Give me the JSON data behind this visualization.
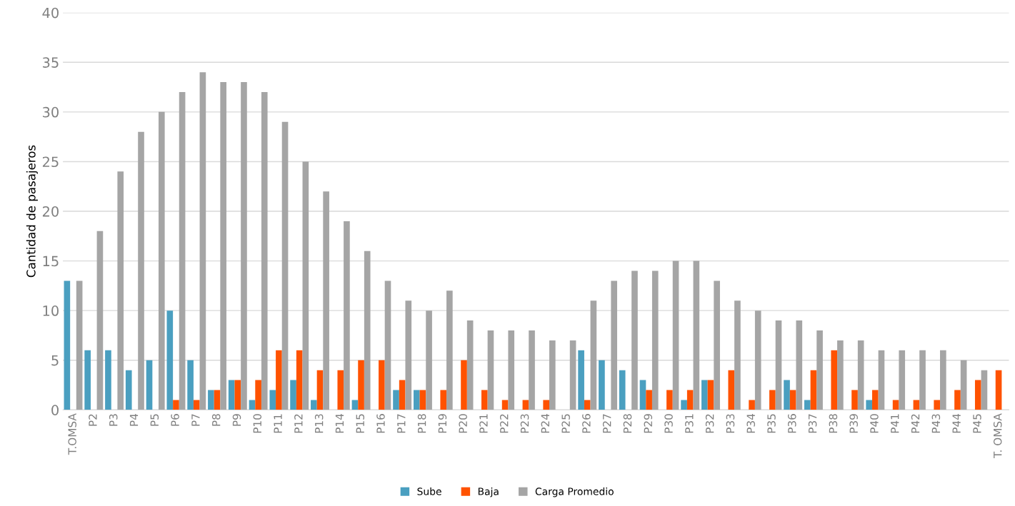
{
  "chart_data": {
    "type": "bar",
    "ylabel": "Cantidad de pasajeros",
    "categories": [
      "T.OMSA",
      "P2",
      "P3",
      "P4",
      "P5",
      "P6",
      "P7",
      "P8",
      "P9",
      "P10",
      "P11",
      "P12",
      "P13",
      "P14",
      "P15",
      "P16",
      "P17",
      "P18",
      "P19",
      "P20",
      "P21",
      "P22",
      "P23",
      "P24",
      "P25",
      "P26",
      "P27",
      "P28",
      "P29",
      "P30",
      "P31",
      "P32",
      "P33",
      "P34",
      "P35",
      "P36",
      "P37",
      "P38",
      "P39",
      "P40",
      "P41",
      "P42",
      "P43",
      "P44",
      "P45",
      "T. OMSA"
    ],
    "series": [
      {
        "name": "Sube",
        "color": "#4a9fc0",
        "values": [
          13,
          6,
          6,
          4,
          5,
          10,
          5,
          2,
          3,
          1,
          2,
          3,
          1,
          0,
          1,
          0,
          2,
          2,
          0,
          0,
          0,
          0,
          0,
          0,
          0,
          6,
          5,
          4,
          3,
          0,
          1,
          3,
          0,
          0,
          0,
          3,
          1,
          0,
          0,
          1,
          0,
          0,
          0,
          0,
          0,
          0
        ]
      },
      {
        "name": "Baja",
        "color": "#ff5200",
        "values": [
          0,
          0,
          0,
          0,
          0,
          1,
          1,
          2,
          3,
          3,
          6,
          6,
          4,
          4,
          5,
          5,
          3,
          2,
          2,
          5,
          2,
          1,
          1,
          1,
          0,
          1,
          0,
          0,
          2,
          2,
          2,
          3,
          4,
          1,
          2,
          2,
          4,
          6,
          2,
          2,
          1,
          1,
          1,
          2,
          3,
          4
        ]
      },
      {
        "name": "Carga Promedio",
        "color": "#a5a5a5",
        "values": [
          13,
          18,
          24,
          28,
          30,
          32,
          34,
          33,
          33,
          32,
          29,
          25,
          22,
          19,
          16,
          13,
          11,
          10,
          12,
          9,
          8,
          8,
          8,
          7,
          7,
          11,
          13,
          14,
          14,
          15,
          15,
          13,
          11,
          10,
          9,
          9,
          8,
          7,
          7,
          6,
          6,
          6,
          6,
          5,
          4,
          0
        ]
      }
    ],
    "ylim": [
      0,
      40
    ],
    "yticks": [
      0,
      5,
      10,
      15,
      20,
      25,
      30,
      35,
      40
    ],
    "grid": "y",
    "legend": "bottom"
  }
}
